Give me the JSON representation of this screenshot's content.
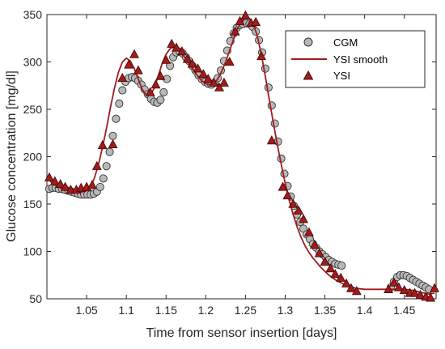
{
  "chart_data": {
    "type": "scatter",
    "title": "",
    "xlabel": "Time from sensor insertion [days]",
    "ylabel": "Glucose concentration [mg/dl]",
    "xlim": [
      1.0,
      1.49
    ],
    "ylim": [
      50,
      350
    ],
    "xticks": [
      "1.05",
      "1.1",
      "1.15",
      "1.2",
      "1.25",
      "1.3",
      "1.35",
      "1.4",
      "1.45"
    ],
    "yticks": [
      "50",
      "100",
      "150",
      "200",
      "250",
      "300",
      "350"
    ],
    "grid": false,
    "legend_position": "top-right",
    "colors": {
      "cgm_fill": "#b8b8b8",
      "cgm_edge": "#333333",
      "line": "#a31b1b",
      "ysi_fill": "#a31b1b",
      "ysi_edge": "#4a0808"
    },
    "series": [
      {
        "name": "CGM",
        "kind": "markers-circle",
        "x": [
          1.003,
          1.007,
          1.011,
          1.015,
          1.019,
          1.023,
          1.027,
          1.031,
          1.035,
          1.039,
          1.043,
          1.047,
          1.051,
          1.055,
          1.059,
          1.063,
          1.067,
          1.071,
          1.075,
          1.079,
          1.083,
          1.087,
          1.091,
          1.095,
          1.099,
          1.103,
          1.107,
          1.111,
          1.115,
          1.119,
          1.123,
          1.127,
          1.131,
          1.135,
          1.139,
          1.143,
          1.147,
          1.151,
          1.155,
          1.159,
          1.163,
          1.167,
          1.171,
          1.175,
          1.179,
          1.183,
          1.187,
          1.191,
          1.195,
          1.199,
          1.203,
          1.207,
          1.211,
          1.215,
          1.219,
          1.223,
          1.227,
          1.231,
          1.235,
          1.239,
          1.243,
          1.247,
          1.251,
          1.255,
          1.259,
          1.263,
          1.267,
          1.271,
          1.275,
          1.279,
          1.283,
          1.287,
          1.291,
          1.295,
          1.299,
          1.303,
          1.307,
          1.311,
          1.315,
          1.319,
          1.323,
          1.327,
          1.331,
          1.335,
          1.339,
          1.343,
          1.347,
          1.351,
          1.355,
          1.359,
          1.363,
          1.367,
          1.371,
          1.433,
          1.437,
          1.441,
          1.445,
          1.449,
          1.453,
          1.457,
          1.461,
          1.465,
          1.469,
          1.473,
          1.477,
          1.481
        ],
        "y": [
          166,
          167,
          167,
          166,
          166,
          165,
          164,
          163,
          162,
          161,
          160,
          160,
          160,
          160,
          161,
          163,
          168,
          177,
          190,
          205,
          222,
          240,
          256,
          270,
          279,
          283,
          284,
          283,
          280,
          276,
          271,
          266,
          261,
          258,
          257,
          260,
          268,
          282,
          296,
          305,
          310,
          311,
          309,
          305,
          301,
          296,
          291,
          286,
          282,
          279,
          277,
          276,
          278,
          283,
          291,
          301,
          312,
          322,
          330,
          336,
          339,
          340,
          341,
          340,
          337,
          332,
          323,
          310,
          293,
          273,
          254,
          235,
          216,
          198,
          182,
          169,
          158,
          148,
          139,
          131,
          124,
          118,
          113,
          108,
          104,
          100,
          97,
          94,
          91,
          89,
          87,
          86,
          85,
          62,
          68,
          73,
          75,
          75,
          74,
          72,
          70,
          68,
          66,
          64,
          62,
          60
        ]
      },
      {
        "name": "YSI smooth",
        "kind": "line",
        "x": [
          1.003,
          1.01,
          1.02,
          1.03,
          1.04,
          1.05,
          1.055,
          1.06,
          1.065,
          1.07,
          1.075,
          1.08,
          1.085,
          1.09,
          1.095,
          1.1,
          1.105,
          1.11,
          1.115,
          1.12,
          1.125,
          1.13,
          1.135,
          1.14,
          1.145,
          1.15,
          1.155,
          1.16,
          1.165,
          1.17,
          1.175,
          1.18,
          1.185,
          1.19,
          1.195,
          1.2,
          1.205,
          1.21,
          1.215,
          1.22,
          1.225,
          1.23,
          1.235,
          1.24,
          1.245,
          1.25,
          1.255,
          1.26,
          1.265,
          1.27,
          1.275,
          1.28,
          1.285,
          1.29,
          1.295,
          1.3,
          1.305,
          1.31,
          1.315,
          1.32,
          1.325,
          1.33,
          1.335,
          1.34,
          1.345,
          1.35,
          1.355,
          1.36,
          1.365,
          1.37,
          1.375,
          1.38,
          1.39,
          1.4,
          1.41,
          1.42,
          1.43,
          1.44,
          1.45,
          1.46,
          1.47,
          1.48,
          1.488
        ],
        "y": [
          175,
          170,
          166,
          163,
          162,
          164,
          168,
          178,
          192,
          210,
          230,
          252,
          272,
          289,
          300,
          304,
          301,
          293,
          282,
          271,
          265,
          265,
          272,
          285,
          298,
          308,
          314,
          316,
          314,
          309,
          303,
          297,
          291,
          285,
          280,
          277,
          276,
          277,
          282,
          290,
          300,
          312,
          324,
          335,
          343,
          347,
          346,
          340,
          327,
          308,
          285,
          260,
          236,
          213,
          192,
          172,
          154,
          139,
          126,
          115,
          106,
          99,
          93,
          88,
          83,
          79,
          75,
          72,
          69,
          67,
          65,
          63,
          61,
          60,
          60,
          60,
          60,
          60,
          60,
          59,
          57,
          55,
          56
        ]
      },
      {
        "name": "YSI",
        "kind": "markers-triangle",
        "x": [
          1.003,
          1.01,
          1.017,
          1.023,
          1.03,
          1.037,
          1.043,
          1.05,
          1.057,
          1.063,
          1.07,
          1.083,
          1.095,
          1.103,
          1.11,
          1.115,
          1.13,
          1.137,
          1.143,
          1.15,
          1.157,
          1.163,
          1.17,
          1.177,
          1.183,
          1.19,
          1.197,
          1.203,
          1.21,
          1.217,
          1.223,
          1.23,
          1.237,
          1.243,
          1.25,
          1.257,
          1.263,
          1.27,
          1.283,
          1.297,
          1.303,
          1.31,
          1.317,
          1.323,
          1.33,
          1.337,
          1.343,
          1.35,
          1.357,
          1.363,
          1.37,
          1.377,
          1.383,
          1.39,
          1.43,
          1.437,
          1.443,
          1.45,
          1.457,
          1.463,
          1.47,
          1.477,
          1.483,
          1.488
        ],
        "y": [
          178,
          174,
          171,
          168,
          165,
          165,
          167,
          168,
          170,
          190,
          212,
          213,
          283,
          297,
          308,
          291,
          268,
          276,
          285,
          302,
          319,
          315,
          311,
          303,
          298,
          293,
          287,
          282,
          278,
          273,
          278,
          300,
          332,
          343,
          349,
          341,
          342,
          306,
          217,
          168,
          159,
          150,
          143,
          134,
          120,
          107,
          98,
          89,
          82,
          76,
          72,
          66,
          61,
          58,
          60,
          67,
          62,
          59,
          56,
          56,
          54,
          52,
          51,
          61
        ]
      }
    ]
  }
}
